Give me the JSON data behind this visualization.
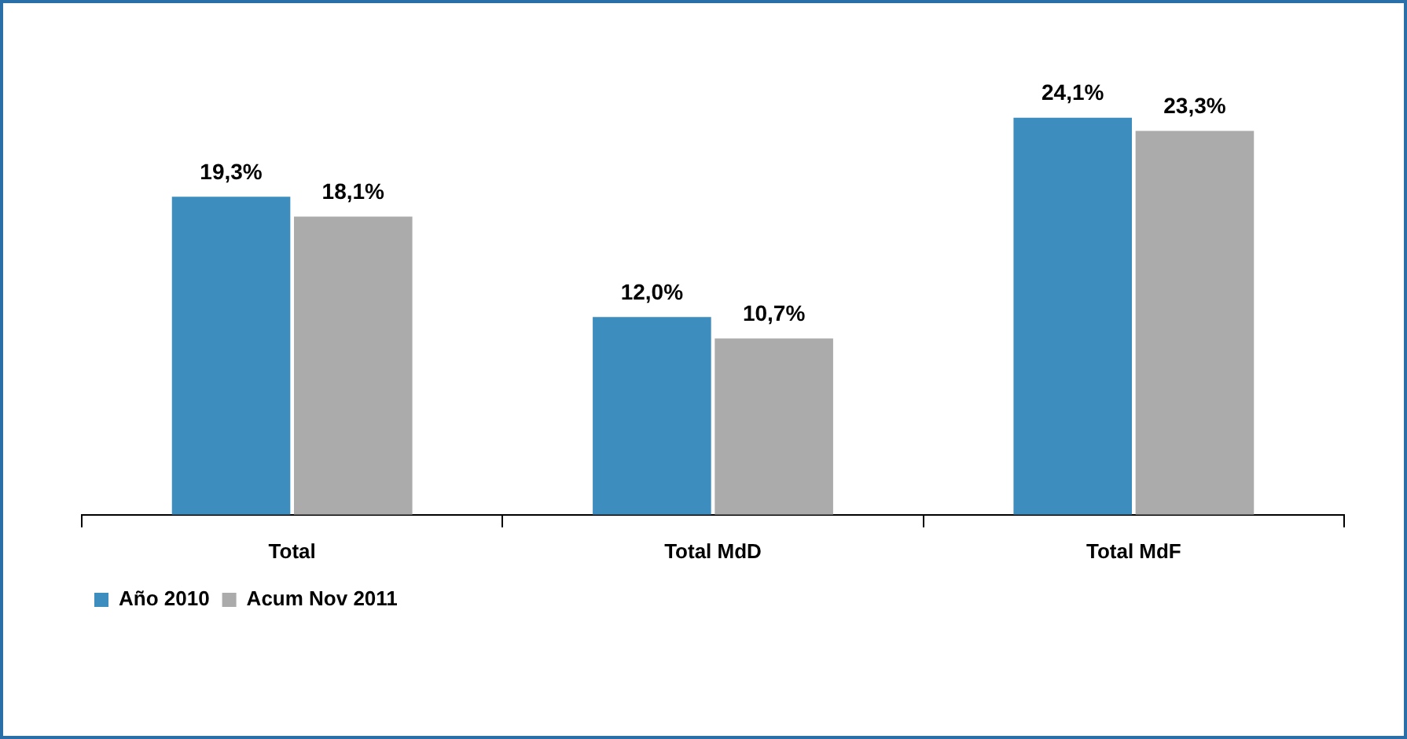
{
  "chart_data": {
    "type": "bar",
    "categories": [
      "Total",
      "Total MdD",
      "Total MdF"
    ],
    "series": [
      {
        "name": "Año 2010",
        "color": "#3d8dbf",
        "values": [
          19.3,
          12.0,
          24.1
        ],
        "value_labels": [
          "19,3%",
          "12,0%",
          "24,1%"
        ]
      },
      {
        "name": "Acum Nov 2011",
        "color": "#ababab",
        "values": [
          18.1,
          10.7,
          23.3
        ],
        "value_labels": [
          "18,1%",
          "10,7%",
          "23,3%"
        ]
      }
    ],
    "grid": false,
    "legend": "bottom left"
  }
}
